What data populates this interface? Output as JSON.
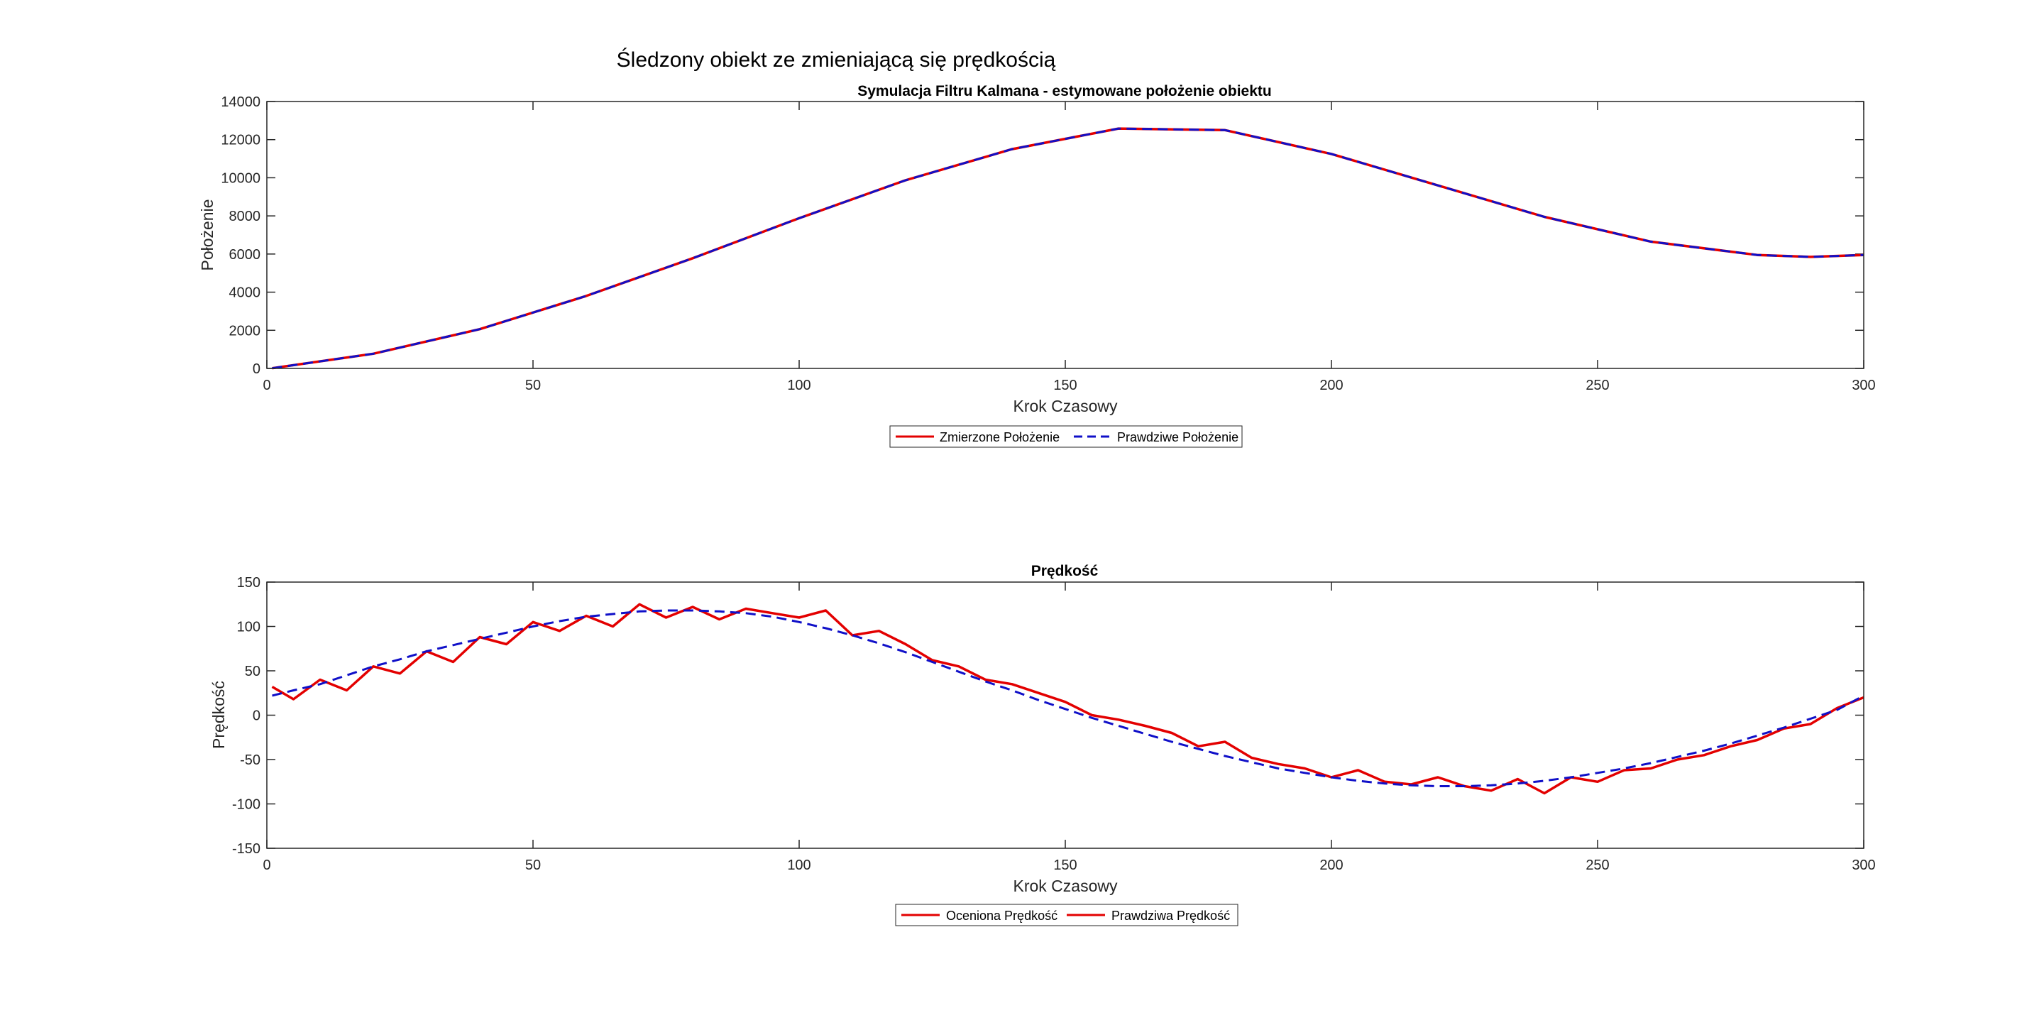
{
  "figure": {
    "suptitle": "Śledzony obiekt ze zmieniającą się prędkością"
  },
  "chart_data": [
    {
      "type": "line",
      "title": "Symulacja Filtru Kalmana - estymowane położenie obiektu",
      "xlabel": "Krok Czasowy",
      "ylabel": "Położenie",
      "xlim": [
        0,
        300
      ],
      "ylim": [
        0,
        14000
      ],
      "xticks": [
        0,
        50,
        100,
        150,
        200,
        250,
        300
      ],
      "yticks": [
        0,
        2000,
        4000,
        6000,
        8000,
        10000,
        12000,
        14000
      ],
      "grid": false,
      "legend": "below-center",
      "x": [
        1,
        20,
        40,
        60,
        80,
        100,
        120,
        140,
        160,
        180,
        200,
        220,
        240,
        260,
        280,
        290,
        300
      ],
      "series": [
        {
          "name": "Zmierzone Położenie",
          "color": "#e30000",
          "style": "solid",
          "values": [
            10,
            770,
            2060,
            3800,
            5780,
            7880,
            9870,
            11500,
            12580,
            12500,
            11250,
            9600,
            7950,
            6650,
            5950,
            5850,
            5950
          ]
        },
        {
          "name": "Prawdziwe Położenie",
          "color": "#1010c8",
          "style": "dashed",
          "values": [
            10,
            770,
            2060,
            3800,
            5780,
            7880,
            9870,
            11500,
            12580,
            12500,
            11250,
            9600,
            7950,
            6650,
            5950,
            5850,
            5950
          ]
        }
      ]
    },
    {
      "type": "line",
      "title": "Prędkość",
      "xlabel": "Krok Czasowy",
      "ylabel": "Prędkość",
      "xlim": [
        0,
        300
      ],
      "ylim": [
        -150,
        150
      ],
      "xticks": [
        0,
        50,
        100,
        150,
        200,
        250,
        300
      ],
      "yticks": [
        -150,
        -100,
        -50,
        0,
        50,
        100,
        150
      ],
      "grid": false,
      "legend": "below-center",
      "x": [
        1,
        5,
        10,
        15,
        20,
        25,
        30,
        35,
        40,
        45,
        50,
        55,
        60,
        65,
        70,
        75,
        80,
        85,
        90,
        95,
        100,
        105,
        110,
        115,
        120,
        125,
        130,
        135,
        140,
        145,
        150,
        155,
        160,
        165,
        170,
        175,
        180,
        185,
        190,
        195,
        200,
        205,
        210,
        215,
        220,
        225,
        230,
        235,
        240,
        245,
        250,
        255,
        260,
        265,
        270,
        275,
        280,
        285,
        290,
        295,
        300
      ],
      "series": [
        {
          "name": "Oceniona Prędkość",
          "color": "#e30000",
          "style": "solid",
          "values": [
            32,
            18,
            40,
            28,
            55,
            47,
            72,
            60,
            88,
            80,
            105,
            95,
            112,
            100,
            125,
            110,
            122,
            108,
            120,
            115,
            110,
            118,
            90,
            95,
            80,
            62,
            55,
            40,
            35,
            25,
            15,
            0,
            -5,
            -12,
            -20,
            -35,
            -30,
            -48,
            -55,
            -60,
            -70,
            -62,
            -75,
            -78,
            -70,
            -80,
            -85,
            -72,
            -88,
            -70,
            -75,
            -62,
            -60,
            -50,
            -45,
            -35,
            -28,
            -15,
            -10,
            8,
            20
          ]
        },
        {
          "name": "Prawdziwa Prędkość",
          "color": "#1010c8",
          "style": "dashed",
          "values": [
            22,
            28,
            35,
            45,
            55,
            63,
            72,
            79,
            86,
            93,
            100,
            106,
            111,
            114,
            117,
            118,
            118,
            117,
            115,
            111,
            105,
            98,
            90,
            81,
            71,
            60,
            49,
            38,
            28,
            17,
            7,
            -3,
            -12,
            -21,
            -30,
            -38,
            -46,
            -53,
            -60,
            -65,
            -70,
            -74,
            -77,
            -79,
            -80,
            -80,
            -79,
            -77,
            -74,
            -70,
            -65,
            -60,
            -54,
            -47,
            -40,
            -32,
            -23,
            -14,
            -4,
            6,
            22
          ]
        }
      ]
    }
  ]
}
